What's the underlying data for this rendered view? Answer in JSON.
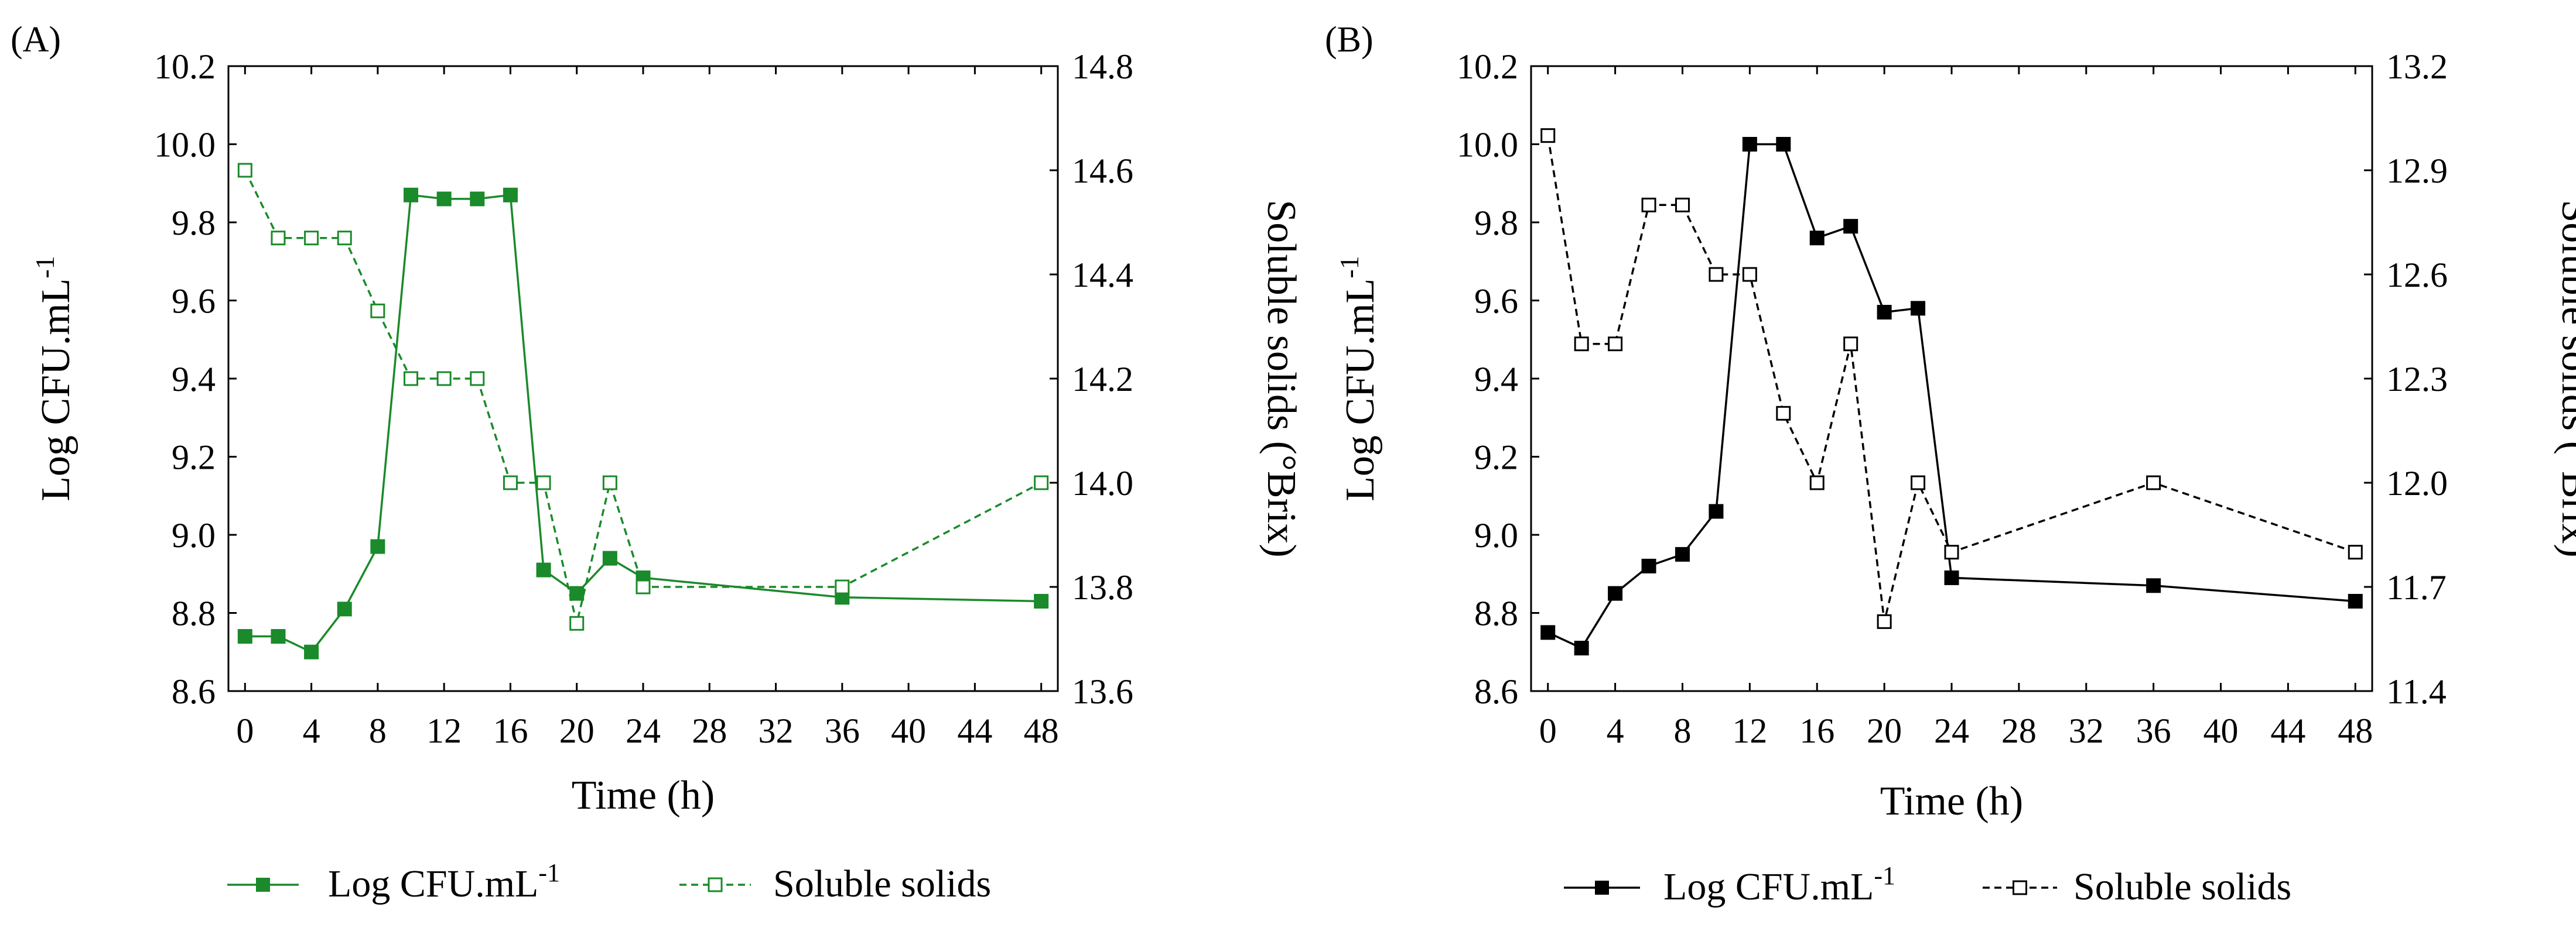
{
  "chart_data": [
    {
      "panel": "(A)",
      "type": "line",
      "xlabel": "Time (h)",
      "ylabel": "Log CFU.mL-1",
      "ylabel_main": "Log CFU.mL",
      "ylabel_sup": "-1",
      "y2label": "Soluble solids (°Brix)",
      "xlim": [
        -1,
        49
      ],
      "ylim": [
        8.6,
        10.2
      ],
      "y2lim": [
        13.6,
        14.8
      ],
      "xticks": [
        0,
        4,
        8,
        12,
        16,
        20,
        24,
        28,
        32,
        36,
        40,
        44,
        48
      ],
      "yticks": [
        "8.6",
        "8.8",
        "9.0",
        "9.2",
        "9.4",
        "9.6",
        "9.8",
        "10.0",
        "10.2"
      ],
      "y2ticks": [
        "13.6",
        "13.8",
        "14.0",
        "14.2",
        "14.4",
        "14.6",
        "14.8"
      ],
      "color": "#1a8a2a",
      "series": [
        {
          "name": "Log CFU.mL-1",
          "legend_main": "Log CFU.mL",
          "legend_sup": "-1",
          "axis": "left",
          "style": "solid",
          "marker": "filled-square",
          "x": [
            0,
            2,
            4,
            6,
            8,
            10,
            12,
            14,
            16,
            18,
            20,
            22,
            24,
            36,
            48
          ],
          "y": [
            8.74,
            8.74,
            8.7,
            8.81,
            8.97,
            9.87,
            9.86,
            9.86,
            9.87,
            8.91,
            8.85,
            8.94,
            8.89,
            8.84,
            8.83
          ]
        },
        {
          "name": "Soluble solids",
          "axis": "right",
          "style": "dashed",
          "marker": "open-square",
          "x": [
            0,
            2,
            4,
            6,
            8,
            10,
            12,
            14,
            16,
            18,
            20,
            22,
            24,
            36,
            48
          ],
          "y": [
            14.6,
            14.47,
            14.47,
            14.47,
            14.33,
            14.2,
            14.2,
            14.2,
            14.0,
            14.0,
            13.73,
            14.0,
            13.8,
            13.8,
            14.0
          ]
        }
      ]
    },
    {
      "panel": "(B)",
      "type": "line",
      "xlabel": "Time (h)",
      "ylabel": "Log CFU.mL-1",
      "ylabel_main": "Log CFU.mL",
      "ylabel_sup": "-1",
      "y2label": "Soluble solids (°Brix)",
      "xlim": [
        -1,
        49
      ],
      "ylim": [
        8.6,
        10.2
      ],
      "y2lim": [
        11.4,
        13.2
      ],
      "xticks": [
        0,
        4,
        8,
        12,
        16,
        20,
        24,
        28,
        32,
        36,
        40,
        44,
        48
      ],
      "yticks": [
        "8.6",
        "8.8",
        "9.0",
        "9.2",
        "9.4",
        "9.6",
        "9.8",
        "10.0",
        "10.2"
      ],
      "y2ticks": [
        "11.4",
        "11.7",
        "12.0",
        "12.3",
        "12.6",
        "12.9",
        "13.2"
      ],
      "color": "#000000",
      "series": [
        {
          "name": "Log CFU.mL-1",
          "legend_main": "Log CFU.mL",
          "legend_sup": "-1",
          "axis": "left",
          "style": "solid",
          "marker": "filled-square",
          "x": [
            0,
            2,
            4,
            6,
            8,
            10,
            12,
            14,
            16,
            18,
            20,
            22,
            24,
            36,
            48
          ],
          "y": [
            8.75,
            8.71,
            8.85,
            8.92,
            8.95,
            9.06,
            10.0,
            10.0,
            9.76,
            9.79,
            9.57,
            9.58,
            8.89,
            8.87,
            8.83
          ]
        },
        {
          "name": "Soluble solids",
          "axis": "right",
          "style": "dashed",
          "marker": "open-square",
          "x": [
            0,
            2,
            4,
            6,
            8,
            10,
            12,
            14,
            16,
            18,
            20,
            22,
            24,
            36,
            48
          ],
          "y": [
            13.0,
            12.4,
            12.4,
            12.8,
            12.8,
            12.6,
            12.6,
            12.2,
            12.0,
            12.4,
            11.6,
            12.0,
            11.8,
            12.0,
            11.8
          ]
        }
      ]
    }
  ]
}
